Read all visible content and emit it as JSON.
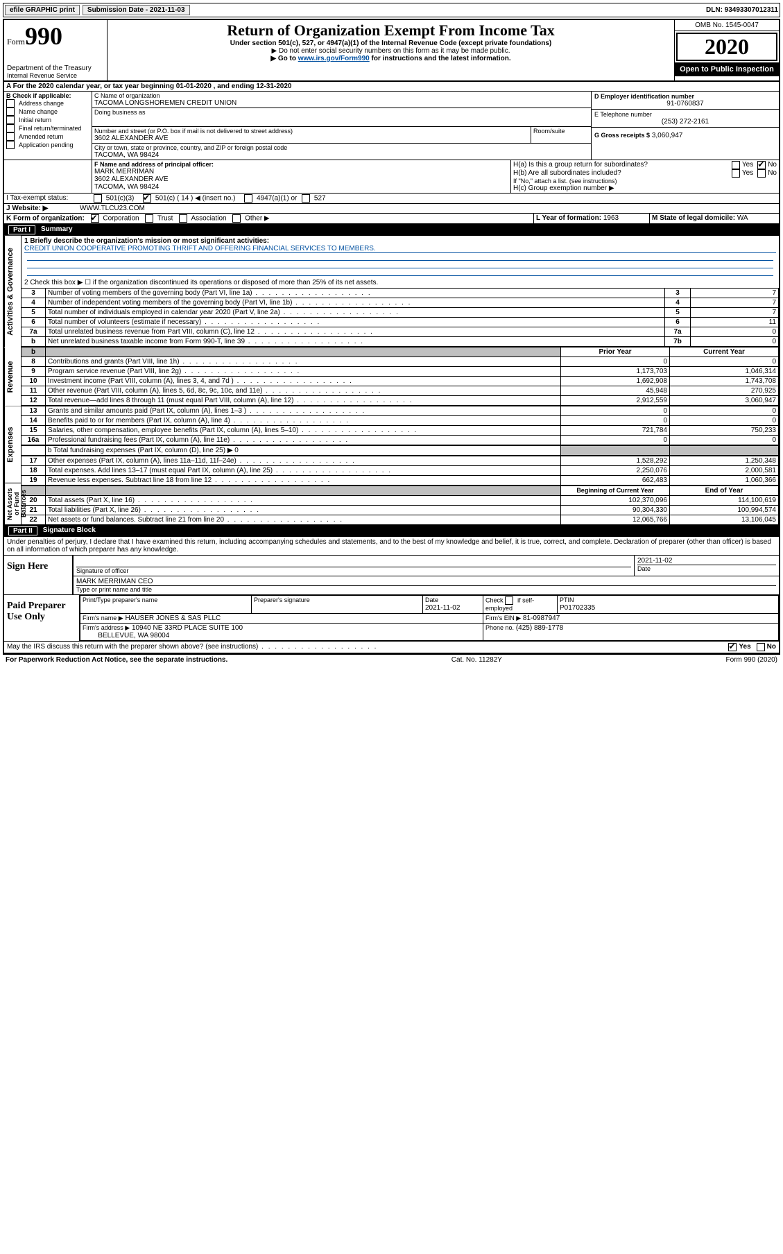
{
  "topbar": {
    "efile": "efile GRAPHIC print",
    "submission_label": "Submission Date - 2021-11-03",
    "dln_label": "DLN: 93493307012311"
  },
  "header": {
    "form_label": "Form",
    "form_number": "990",
    "dept1": "Department of the Treasury",
    "dept2": "Internal Revenue Service",
    "title": "Return of Organization Exempt From Income Tax",
    "subtitle": "Under section 501(c), 527, or 4947(a)(1) of the Internal Revenue Code (except private foundations)",
    "note1": "▶ Do not enter social security numbers on this form as it may be made public.",
    "note2_pre": "▶ Go to ",
    "note2_link": "www.irs.gov/Form990",
    "note2_post": " for instructions and the latest information.",
    "omb": "OMB No. 1545-0047",
    "year": "2020",
    "inspection": "Open to Public Inspection"
  },
  "periodA": "A For the 2020 calendar year, or tax year beginning 01-01-2020  , and ending 12-31-2020",
  "secB": {
    "label": "B Check if applicable:",
    "opts": [
      "Address change",
      "Name change",
      "Initial return",
      "Final return/terminated",
      "Amended return",
      "Application pending"
    ]
  },
  "secC": {
    "name_label": "C Name of organization",
    "name": "TACOMA LONGSHOREMEN CREDIT UNION",
    "dba_label": "Doing business as",
    "addr_label": "Number and street (or P.O. box if mail is not delivered to street address)",
    "room_label": "Room/suite",
    "addr": "3602 ALEXANDER AVE",
    "city_label": "City or town, state or province, country, and ZIP or foreign postal code",
    "city": "TACOMA, WA  98424"
  },
  "secD": {
    "label": "D Employer identification number",
    "value": "91-0760837"
  },
  "secE": {
    "label": "E Telephone number",
    "value": "(253) 272-2161"
  },
  "secG": {
    "label": "G Gross receipts $",
    "value": "3,060,947"
  },
  "secF": {
    "label": "F Name and address of principal officer:",
    "name": "MARK MERRIMAN",
    "addr1": "3602 ALEXANDER AVE",
    "addr2": "TACOMA, WA  98424"
  },
  "secH": {
    "ha": "H(a)  Is this a group return for subordinates?",
    "hb": "H(b)  Are all subordinates included?",
    "hb_note": "If \"No,\" attach a list. (see instructions)",
    "hc": "H(c)  Group exemption number ▶",
    "yes": "Yes",
    "no": "No"
  },
  "secI": {
    "label": "I  Tax-exempt status:",
    "o1": "501(c)(3)",
    "o2": "501(c) ( 14 ) ◀ (insert no.)",
    "o3": "4947(a)(1) or",
    "o4": "527"
  },
  "secJ": {
    "label": "J  Website: ▶",
    "value": "WWW.TLCU23.COM"
  },
  "secK": {
    "label": "K Form of organization:",
    "o1": "Corporation",
    "o2": "Trust",
    "o3": "Association",
    "o4": "Other ▶"
  },
  "secL": {
    "label": "L Year of formation:",
    "value": "1963"
  },
  "secM": {
    "label": "M State of legal domicile:",
    "value": "WA"
  },
  "part1": {
    "title": "Part I",
    "subtitle": "Summary",
    "side1": "Activities & Governance",
    "side2": "Revenue",
    "side3": "Expenses",
    "side4": "Net Assets or Fund Balances",
    "q1_label": "1  Briefly describe the organization's mission or most significant activities:",
    "q1_value": "CREDIT UNION COOPERATIVE PROMOTING THRIFT AND OFFERING FINANCIAL SERVICES TO MEMBERS.",
    "q2": "2  Check this box ▶ ☐  if the organization discontinued its operations or disposed of more than 25% of its net assets.",
    "lines_gov": [
      {
        "n": "3",
        "t": "Number of voting members of the governing body (Part VI, line 1a)",
        "b": "3",
        "v": "7"
      },
      {
        "n": "4",
        "t": "Number of independent voting members of the governing body (Part VI, line 1b)",
        "b": "4",
        "v": "7"
      },
      {
        "n": "5",
        "t": "Total number of individuals employed in calendar year 2020 (Part V, line 2a)",
        "b": "5",
        "v": "7"
      },
      {
        "n": "6",
        "t": "Total number of volunteers (estimate if necessary)",
        "b": "6",
        "v": "11"
      },
      {
        "n": "7a",
        "t": "Total unrelated business revenue from Part VIII, column (C), line 12",
        "b": "7a",
        "v": "0"
      },
      {
        "n": "b",
        "t": "Net unrelated business taxable income from Form 990-T, line 39",
        "b": "7b",
        "v": "0"
      }
    ],
    "col_prior": "Prior Year",
    "col_current": "Current Year",
    "lines_rev": [
      {
        "n": "8",
        "t": "Contributions and grants (Part VIII, line 1h)",
        "p": "0",
        "c": "0"
      },
      {
        "n": "9",
        "t": "Program service revenue (Part VIII, line 2g)",
        "p": "1,173,703",
        "c": "1,046,314"
      },
      {
        "n": "10",
        "t": "Investment income (Part VIII, column (A), lines 3, 4, and 7d )",
        "p": "1,692,908",
        "c": "1,743,708"
      },
      {
        "n": "11",
        "t": "Other revenue (Part VIII, column (A), lines 5, 6d, 8c, 9c, 10c, and 11e)",
        "p": "45,948",
        "c": "270,925"
      },
      {
        "n": "12",
        "t": "Total revenue—add lines 8 through 11 (must equal Part VIII, column (A), line 12)",
        "p": "2,912,559",
        "c": "3,060,947"
      }
    ],
    "lines_exp": [
      {
        "n": "13",
        "t": "Grants and similar amounts paid (Part IX, column (A), lines 1–3 )",
        "p": "0",
        "c": "0"
      },
      {
        "n": "14",
        "t": "Benefits paid to or for members (Part IX, column (A), line 4)",
        "p": "0",
        "c": "0"
      },
      {
        "n": "15",
        "t": "Salaries, other compensation, employee benefits (Part IX, column (A), lines 5–10)",
        "p": "721,784",
        "c": "750,233"
      },
      {
        "n": "16a",
        "t": "Professional fundraising fees (Part IX, column (A), line 11e)",
        "p": "0",
        "c": "0"
      }
    ],
    "line16b": "b  Total fundraising expenses (Part IX, column (D), line 25) ▶ 0",
    "lines_exp2": [
      {
        "n": "17",
        "t": "Other expenses (Part IX, column (A), lines 11a–11d, 11f–24e)",
        "p": "1,528,292",
        "c": "1,250,348"
      },
      {
        "n": "18",
        "t": "Total expenses. Add lines 13–17 (must equal Part IX, column (A), line 25)",
        "p": "2,250,076",
        "c": "2,000,581"
      },
      {
        "n": "19",
        "t": "Revenue less expenses. Subtract line 18 from line 12",
        "p": "662,483",
        "c": "1,060,366"
      }
    ],
    "col_begin": "Beginning of Current Year",
    "col_end": "End of Year",
    "lines_net": [
      {
        "n": "20",
        "t": "Total assets (Part X, line 16)",
        "p": "102,370,096",
        "c": "114,100,619"
      },
      {
        "n": "21",
        "t": "Total liabilities (Part X, line 26)",
        "p": "90,304,330",
        "c": "100,994,574"
      },
      {
        "n": "22",
        "t": "Net assets or fund balances. Subtract line 21 from line 20",
        "p": "12,065,766",
        "c": "13,106,045"
      }
    ]
  },
  "part2": {
    "title": "Part II",
    "subtitle": "Signature Block",
    "declaration": "Under penalties of perjury, I declare that I have examined this return, including accompanying schedules and statements, and to the best of my knowledge and belief, it is true, correct, and complete. Declaration of preparer (other than officer) is based on all information of which preparer has any knowledge."
  },
  "sign": {
    "side": "Sign Here",
    "sig_label": "Signature of officer",
    "date": "2021-11-02",
    "date_label": "Date",
    "name": "MARK MERRIMAN CEO",
    "name_label": "Type or print name and title"
  },
  "preparer": {
    "side": "Paid Preparer Use Only",
    "h1": "Print/Type preparer's name",
    "h2": "Preparer's signature",
    "h3": "Date",
    "date": "2021-11-02",
    "h4_pre": "Check",
    "h4_post": "if self-employed",
    "h5": "PTIN",
    "ptin": "P01702335",
    "firm_label": "Firm's name  ▶",
    "firm": "HAUSER JONES & SAS PLLC",
    "ein_label": "Firm's EIN ▶",
    "ein": "81-0987947",
    "addr_label": "Firm's address ▶",
    "addr1": "10940 NE 33RD PLACE SUITE 100",
    "addr2": "BELLEVUE, WA  98004",
    "phone_label": "Phone no.",
    "phone": "(425) 889-1778"
  },
  "footer": {
    "discuss": "May the IRS discuss this return with the preparer shown above? (see instructions)",
    "yes": "Yes",
    "no": "No",
    "paperwork": "For Paperwork Reduction Act Notice, see the separate instructions.",
    "cat": "Cat. No. 11282Y",
    "form": "Form 990 (2020)"
  }
}
